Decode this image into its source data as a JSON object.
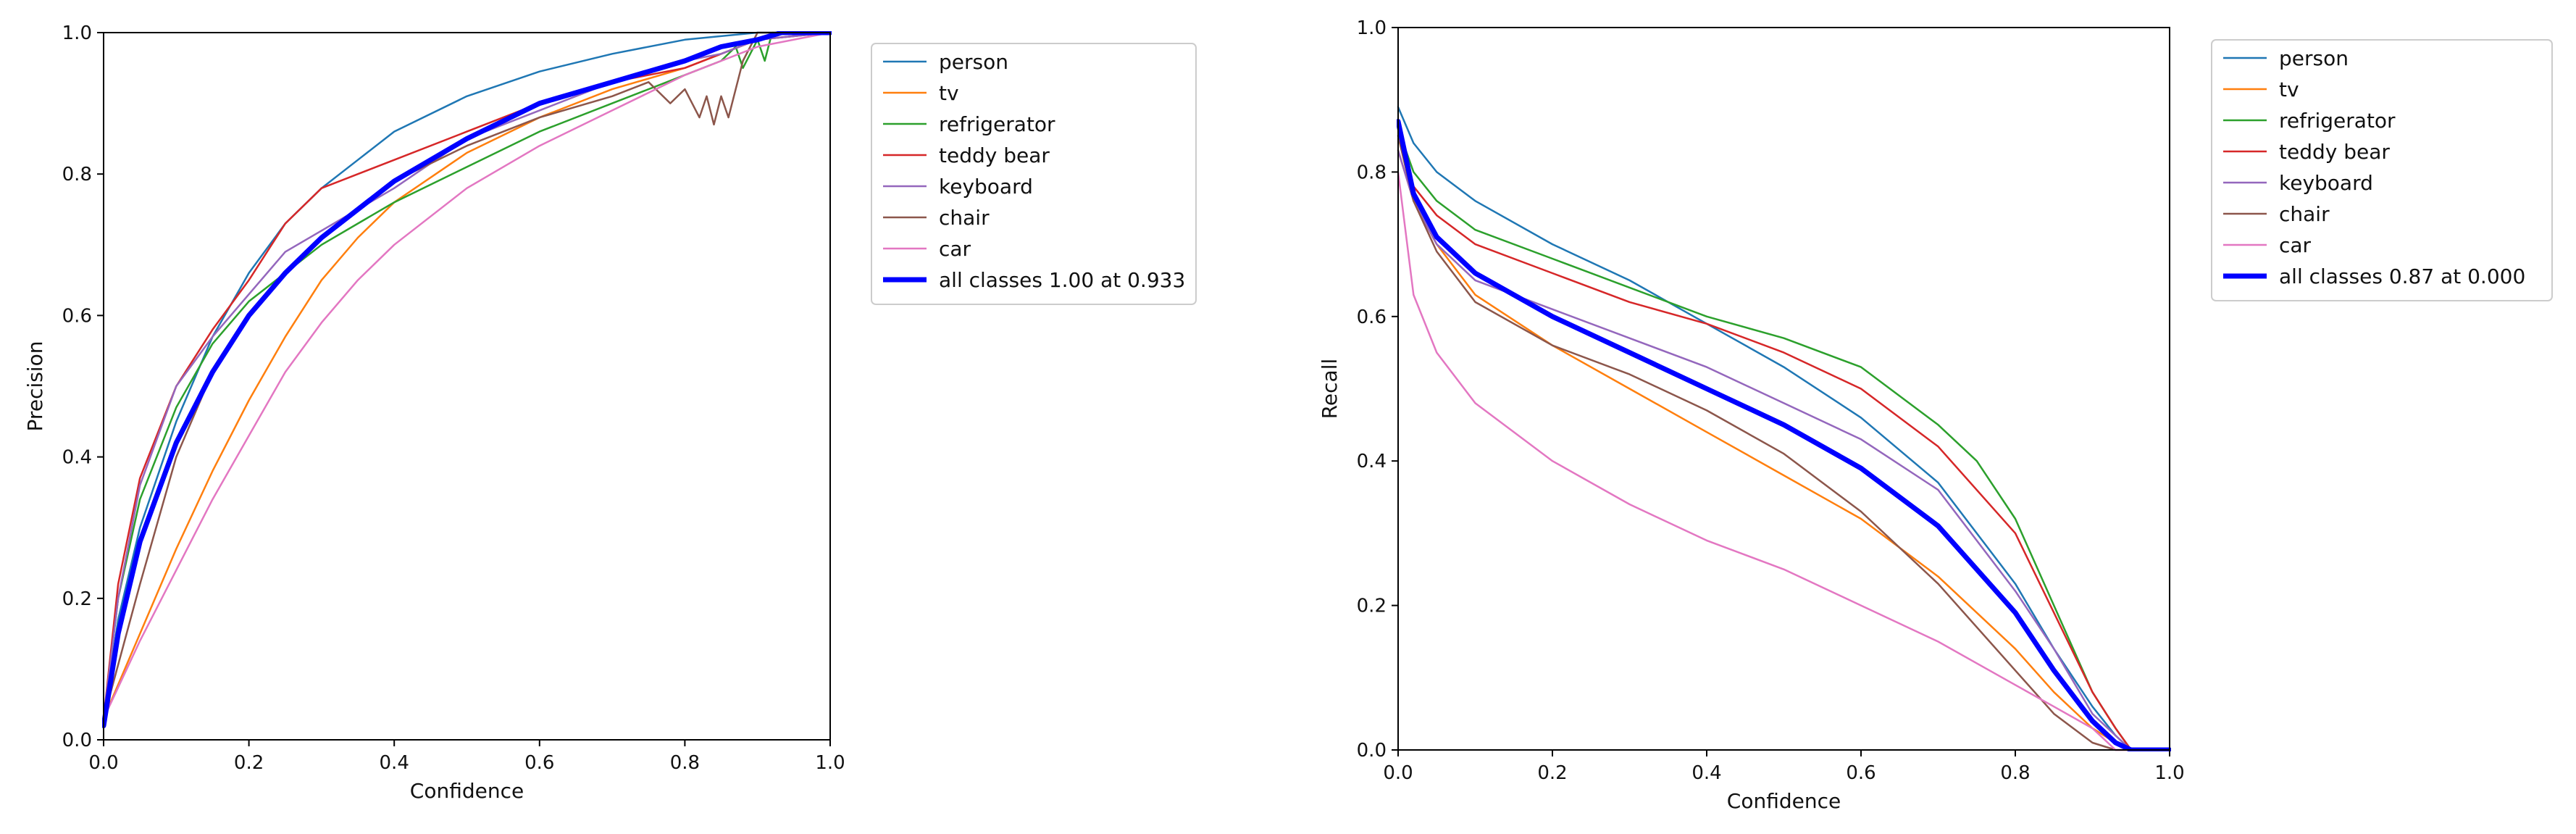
{
  "chart_data": [
    {
      "type": "line",
      "xlabel": "Confidence",
      "ylabel": "Precision",
      "xlim": [
        0.0,
        1.0
      ],
      "ylim": [
        0.0,
        1.0
      ],
      "xticks": [
        "0.0",
        "0.2",
        "0.4",
        "0.6",
        "0.8",
        "1.0"
      ],
      "yticks": [
        "0.0",
        "0.2",
        "0.4",
        "0.6",
        "0.8",
        "1.0"
      ],
      "legend_position": "outside-right",
      "series": [
        {
          "name": "person",
          "color": "#1f77b4",
          "width": "thin",
          "x": [
            0,
            0.02,
            0.05,
            0.1,
            0.15,
            0.2,
            0.25,
            0.3,
            0.35,
            0.4,
            0.5,
            0.6,
            0.7,
            0.8,
            0.9,
            1.0
          ],
          "y": [
            0.03,
            0.17,
            0.3,
            0.45,
            0.57,
            0.66,
            0.73,
            0.78,
            0.82,
            0.86,
            0.91,
            0.945,
            0.97,
            0.99,
            1.0,
            1.0
          ]
        },
        {
          "name": "tv",
          "color": "#ff7f0e",
          "width": "thin",
          "x": [
            0,
            0.05,
            0.1,
            0.15,
            0.2,
            0.25,
            0.3,
            0.35,
            0.4,
            0.5,
            0.6,
            0.7,
            0.8,
            0.85,
            0.9,
            1.0
          ],
          "y": [
            0.03,
            0.15,
            0.27,
            0.38,
            0.48,
            0.57,
            0.65,
            0.71,
            0.76,
            0.83,
            0.88,
            0.92,
            0.95,
            0.97,
            0.99,
            1.0
          ]
        },
        {
          "name": "refrigerator",
          "color": "#2ca02c",
          "width": "thin",
          "x": [
            0,
            0.02,
            0.05,
            0.1,
            0.15,
            0.2,
            0.25,
            0.3,
            0.35,
            0.4,
            0.5,
            0.6,
            0.7,
            0.8,
            0.85,
            0.87,
            0.88,
            0.9,
            0.91,
            0.92,
            1.0
          ],
          "y": [
            0.03,
            0.2,
            0.34,
            0.47,
            0.56,
            0.62,
            0.66,
            0.7,
            0.73,
            0.76,
            0.81,
            0.86,
            0.9,
            0.94,
            0.96,
            0.98,
            0.95,
            0.99,
            0.96,
            1.0,
            1.0
          ]
        },
        {
          "name": "teddy bear",
          "color": "#d62728",
          "width": "thin",
          "x": [
            0,
            0.02,
            0.05,
            0.1,
            0.15,
            0.2,
            0.25,
            0.3,
            0.35,
            0.4,
            0.5,
            0.6,
            0.7,
            0.8,
            0.85,
            0.9,
            1.0
          ],
          "y": [
            0.03,
            0.22,
            0.37,
            0.5,
            0.58,
            0.65,
            0.73,
            0.78,
            0.8,
            0.82,
            0.86,
            0.9,
            0.93,
            0.95,
            0.97,
            0.99,
            1.0
          ]
        },
        {
          "name": "keyboard",
          "color": "#9467bd",
          "width": "thin",
          "x": [
            0,
            0.02,
            0.05,
            0.1,
            0.15,
            0.2,
            0.25,
            0.3,
            0.35,
            0.4,
            0.5,
            0.6,
            0.7,
            0.8,
            0.85,
            0.9,
            1.0
          ],
          "y": [
            0.03,
            0.2,
            0.36,
            0.5,
            0.57,
            0.63,
            0.69,
            0.72,
            0.75,
            0.78,
            0.85,
            0.89,
            0.93,
            0.96,
            0.97,
            0.99,
            1.0
          ]
        },
        {
          "name": "chair",
          "color": "#8c564b",
          "width": "thin",
          "x": [
            0,
            0.05,
            0.1,
            0.15,
            0.2,
            0.25,
            0.3,
            0.35,
            0.4,
            0.5,
            0.6,
            0.7,
            0.75,
            0.78,
            0.8,
            0.82,
            0.83,
            0.84,
            0.85,
            0.86,
            0.88,
            0.9,
            1.0
          ],
          "y": [
            0.03,
            0.22,
            0.4,
            0.52,
            0.6,
            0.66,
            0.71,
            0.75,
            0.79,
            0.84,
            0.88,
            0.91,
            0.93,
            0.9,
            0.92,
            0.88,
            0.91,
            0.87,
            0.91,
            0.88,
            0.96,
            1.0,
            1.0
          ]
        },
        {
          "name": "car",
          "color": "#e377c2",
          "width": "thin",
          "x": [
            0,
            0.05,
            0.1,
            0.15,
            0.2,
            0.25,
            0.3,
            0.35,
            0.4,
            0.5,
            0.6,
            0.7,
            0.8,
            0.9,
            1.0
          ],
          "y": [
            0.03,
            0.14,
            0.24,
            0.34,
            0.43,
            0.52,
            0.59,
            0.65,
            0.7,
            0.78,
            0.84,
            0.89,
            0.94,
            0.98,
            1.0
          ]
        },
        {
          "name": "all classes 1.00 at 0.933",
          "color": "#0000ff",
          "width": "thick",
          "x": [
            0,
            0.02,
            0.05,
            0.1,
            0.15,
            0.2,
            0.25,
            0.3,
            0.35,
            0.4,
            0.5,
            0.6,
            0.7,
            0.8,
            0.85,
            0.9,
            0.933,
            1.0
          ],
          "y": [
            0.02,
            0.15,
            0.28,
            0.42,
            0.52,
            0.6,
            0.66,
            0.71,
            0.75,
            0.79,
            0.85,
            0.9,
            0.93,
            0.96,
            0.98,
            0.99,
            1.0,
            1.0
          ]
        }
      ]
    },
    {
      "type": "line",
      "xlabel": "Confidence",
      "ylabel": "Recall",
      "xlim": [
        0.0,
        1.0
      ],
      "ylim": [
        0.0,
        1.0
      ],
      "xticks": [
        "0.0",
        "0.2",
        "0.4",
        "0.6",
        "0.8",
        "1.0"
      ],
      "yticks": [
        "0.0",
        "0.2",
        "0.4",
        "0.6",
        "0.8",
        "1.0"
      ],
      "legend_position": "outside-right",
      "series": [
        {
          "name": "person",
          "color": "#1f77b4",
          "width": "thin",
          "x": [
            0,
            0.02,
            0.05,
            0.1,
            0.2,
            0.3,
            0.4,
            0.5,
            0.6,
            0.7,
            0.8,
            0.85,
            0.9,
            0.93,
            0.95,
            1.0
          ],
          "y": [
            0.89,
            0.84,
            0.8,
            0.76,
            0.7,
            0.65,
            0.59,
            0.53,
            0.46,
            0.37,
            0.23,
            0.14,
            0.06,
            0.02,
            0.0,
            0.0
          ]
        },
        {
          "name": "tv",
          "color": "#ff7f0e",
          "width": "thin",
          "x": [
            0,
            0.02,
            0.05,
            0.1,
            0.2,
            0.3,
            0.4,
            0.5,
            0.6,
            0.7,
            0.8,
            0.85,
            0.9,
            0.93,
            0.95,
            1.0
          ],
          "y": [
            0.83,
            0.76,
            0.7,
            0.63,
            0.56,
            0.5,
            0.44,
            0.38,
            0.32,
            0.24,
            0.14,
            0.08,
            0.03,
            0.01,
            0.0,
            0.0
          ]
        },
        {
          "name": "refrigerator",
          "color": "#2ca02c",
          "width": "thin",
          "x": [
            0,
            0.02,
            0.05,
            0.1,
            0.2,
            0.3,
            0.4,
            0.5,
            0.6,
            0.7,
            0.75,
            0.8,
            0.85,
            0.9,
            0.93,
            0.95,
            1.0
          ],
          "y": [
            0.86,
            0.8,
            0.76,
            0.72,
            0.68,
            0.64,
            0.6,
            0.57,
            0.53,
            0.45,
            0.4,
            0.32,
            0.2,
            0.08,
            0.03,
            0.0,
            0.0
          ]
        },
        {
          "name": "teddy bear",
          "color": "#d62728",
          "width": "thin",
          "x": [
            0,
            0.02,
            0.05,
            0.1,
            0.2,
            0.3,
            0.4,
            0.5,
            0.6,
            0.7,
            0.8,
            0.85,
            0.9,
            0.93,
            0.95,
            1.0
          ],
          "y": [
            0.85,
            0.78,
            0.74,
            0.7,
            0.66,
            0.62,
            0.59,
            0.55,
            0.5,
            0.42,
            0.3,
            0.19,
            0.08,
            0.03,
            0.0,
            0.0
          ]
        },
        {
          "name": "keyboard",
          "color": "#9467bd",
          "width": "thin",
          "x": [
            0,
            0.02,
            0.05,
            0.1,
            0.2,
            0.3,
            0.4,
            0.5,
            0.6,
            0.7,
            0.8,
            0.85,
            0.9,
            0.93,
            0.95,
            1.0
          ],
          "y": [
            0.83,
            0.76,
            0.7,
            0.65,
            0.61,
            0.57,
            0.53,
            0.48,
            0.43,
            0.36,
            0.22,
            0.14,
            0.05,
            0.02,
            0.0,
            0.0
          ]
        },
        {
          "name": "chair",
          "color": "#8c564b",
          "width": "thin",
          "x": [
            0,
            0.02,
            0.05,
            0.1,
            0.2,
            0.3,
            0.4,
            0.5,
            0.6,
            0.7,
            0.8,
            0.85,
            0.9,
            0.93,
            1.0
          ],
          "y": [
            0.85,
            0.76,
            0.69,
            0.62,
            0.56,
            0.52,
            0.47,
            0.41,
            0.33,
            0.23,
            0.11,
            0.05,
            0.01,
            0.0,
            0.0
          ]
        },
        {
          "name": "car",
          "color": "#e377c2",
          "width": "thin",
          "x": [
            0,
            0.02,
            0.05,
            0.1,
            0.2,
            0.3,
            0.4,
            0.5,
            0.6,
            0.7,
            0.8,
            0.85,
            0.9,
            0.93,
            1.0
          ],
          "y": [
            0.8,
            0.63,
            0.55,
            0.48,
            0.4,
            0.34,
            0.29,
            0.25,
            0.2,
            0.15,
            0.09,
            0.06,
            0.03,
            0.0,
            0.0
          ]
        },
        {
          "name": "all classes 0.87 at 0.000",
          "color": "#0000ff",
          "width": "thick",
          "x": [
            0,
            0.02,
            0.05,
            0.1,
            0.2,
            0.3,
            0.4,
            0.5,
            0.6,
            0.7,
            0.8,
            0.85,
            0.9,
            0.93,
            0.95,
            1.0
          ],
          "y": [
            0.87,
            0.77,
            0.71,
            0.66,
            0.6,
            0.55,
            0.5,
            0.45,
            0.39,
            0.31,
            0.19,
            0.11,
            0.04,
            0.01,
            0.0,
            0.0
          ]
        }
      ]
    }
  ]
}
